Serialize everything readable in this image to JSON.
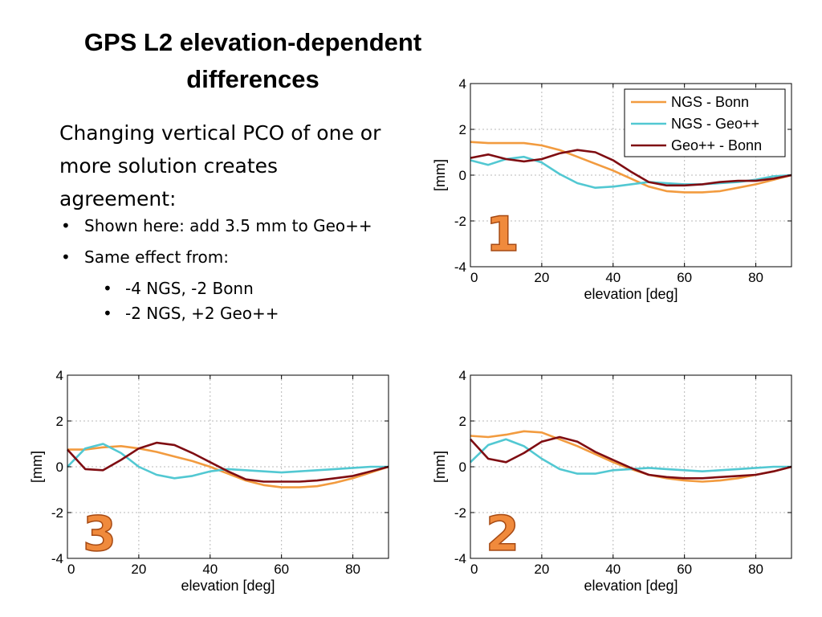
{
  "title": "GPS L2 elevation-dependent differences",
  "intro": "Changing vertical PCO of one or more solution creates agreement:",
  "bullets": [
    {
      "text": "Shown here: add 3.5 mm to Geo++"
    },
    {
      "text": "Same effect from:"
    }
  ],
  "sub_bullets": [
    {
      "text": "-4 NGS, -2 Bonn"
    },
    {
      "text": "-2 NGS, +2 Geo++"
    }
  ],
  "colors": {
    "ngs_bonn": "#f29b3f",
    "ngs_geo": "#52c8d2",
    "geo_bonn": "#7f0d12",
    "grid": "#b8b8b8"
  },
  "chart_data": [
    {
      "type": "line",
      "badge": "1",
      "xlabel": "elevation [deg]",
      "ylabel": "[mm]",
      "xlim": [
        0,
        90
      ],
      "ylim": [
        -4,
        4
      ],
      "xticks": [
        0,
        20,
        40,
        60,
        80
      ],
      "yticks": [
        -4,
        -2,
        0,
        2,
        4
      ],
      "grid": true,
      "legend": "top-right",
      "x": [
        0,
        5,
        10,
        15,
        20,
        25,
        30,
        35,
        40,
        45,
        50,
        55,
        60,
        65,
        70,
        75,
        80,
        85,
        90
      ],
      "series": [
        {
          "name": "NGS - Bonn",
          "color": "#f29b3f",
          "values": [
            1.45,
            1.4,
            1.4,
            1.4,
            1.3,
            1.1,
            0.8,
            0.5,
            0.2,
            -0.15,
            -0.5,
            -0.7,
            -0.75,
            -0.75,
            -0.7,
            -0.55,
            -0.4,
            -0.2,
            0.0
          ]
        },
        {
          "name": "NGS - Geo++",
          "color": "#52c8d2",
          "values": [
            0.65,
            0.45,
            0.7,
            0.8,
            0.55,
            0.05,
            -0.35,
            -0.55,
            -0.5,
            -0.4,
            -0.3,
            -0.35,
            -0.4,
            -0.4,
            -0.35,
            -0.3,
            -0.2,
            -0.05,
            0.0
          ]
        },
        {
          "name": "Geo++ - Bonn",
          "color": "#7f0d12",
          "values": [
            0.75,
            0.9,
            0.7,
            0.6,
            0.7,
            0.95,
            1.1,
            1.0,
            0.65,
            0.15,
            -0.3,
            -0.45,
            -0.45,
            -0.4,
            -0.3,
            -0.25,
            -0.25,
            -0.15,
            0.0
          ]
        }
      ]
    },
    {
      "type": "line",
      "badge": "3",
      "xlabel": "elevation [deg]",
      "ylabel": "[mm]",
      "xlim": [
        0,
        90
      ],
      "ylim": [
        -4,
        4
      ],
      "xticks": [
        0,
        20,
        40,
        60,
        80
      ],
      "yticks": [
        -4,
        -2,
        0,
        2,
        4
      ],
      "grid": true,
      "x": [
        0,
        5,
        10,
        15,
        20,
        25,
        30,
        35,
        40,
        45,
        50,
        55,
        60,
        65,
        70,
        75,
        80,
        85,
        90
      ],
      "series": [
        {
          "name": "NGS - Bonn",
          "color": "#f29b3f",
          "values": [
            0.75,
            0.75,
            0.85,
            0.9,
            0.8,
            0.65,
            0.45,
            0.25,
            0.0,
            -0.3,
            -0.6,
            -0.8,
            -0.9,
            -0.9,
            -0.85,
            -0.7,
            -0.5,
            -0.25,
            0.0
          ]
        },
        {
          "name": "NGS - Geo++",
          "color": "#52c8d2",
          "values": [
            0.0,
            0.8,
            1.0,
            0.6,
            0.0,
            -0.35,
            -0.5,
            -0.4,
            -0.2,
            -0.1,
            -0.15,
            -0.2,
            -0.25,
            -0.2,
            -0.15,
            -0.1,
            -0.05,
            0.0,
            0.0
          ]
        },
        {
          "name": "Geo++ - Bonn",
          "color": "#7f0d12",
          "values": [
            0.75,
            -0.1,
            -0.15,
            0.3,
            0.8,
            1.05,
            0.95,
            0.6,
            0.2,
            -0.2,
            -0.55,
            -0.65,
            -0.65,
            -0.65,
            -0.6,
            -0.5,
            -0.4,
            -0.2,
            0.0
          ]
        }
      ]
    },
    {
      "type": "line",
      "badge": "2",
      "xlabel": "elevation [deg]",
      "ylabel": "[mm]",
      "xlim": [
        0,
        90
      ],
      "ylim": [
        -4,
        4
      ],
      "xticks": [
        0,
        20,
        40,
        60,
        80
      ],
      "yticks": [
        -4,
        -2,
        0,
        2,
        4
      ],
      "grid": true,
      "x": [
        0,
        5,
        10,
        15,
        20,
        25,
        30,
        35,
        40,
        45,
        50,
        55,
        60,
        65,
        70,
        75,
        80,
        85,
        90
      ],
      "series": [
        {
          "name": "NGS - Bonn",
          "color": "#f29b3f",
          "values": [
            1.35,
            1.3,
            1.4,
            1.55,
            1.5,
            1.2,
            0.9,
            0.55,
            0.2,
            -0.1,
            -0.35,
            -0.5,
            -0.6,
            -0.65,
            -0.6,
            -0.5,
            -0.35,
            -0.2,
            0.0
          ]
        },
        {
          "name": "NGS - Geo++",
          "color": "#52c8d2",
          "values": [
            0.2,
            0.95,
            1.2,
            0.9,
            0.35,
            -0.1,
            -0.3,
            -0.3,
            -0.15,
            -0.1,
            -0.05,
            -0.1,
            -0.15,
            -0.2,
            -0.15,
            -0.1,
            -0.05,
            0.0,
            0.0
          ]
        },
        {
          "name": "Geo++ - Bonn",
          "color": "#7f0d12",
          "values": [
            1.2,
            0.35,
            0.2,
            0.6,
            1.1,
            1.3,
            1.1,
            0.65,
            0.3,
            -0.05,
            -0.35,
            -0.45,
            -0.5,
            -0.5,
            -0.45,
            -0.4,
            -0.35,
            -0.2,
            0.0
          ]
        }
      ]
    }
  ]
}
